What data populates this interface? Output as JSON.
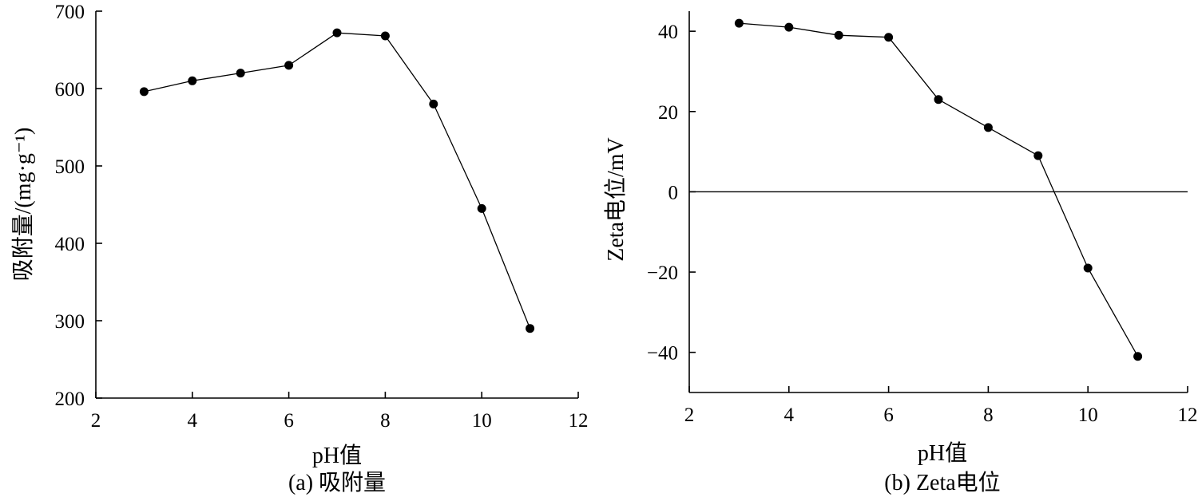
{
  "chart_data": [
    {
      "type": "line",
      "caption": "(a) 吸附量",
      "xlabel": "pH值",
      "ylabel": "吸附量/(mg·g⁻¹)",
      "xlim": [
        2,
        12
      ],
      "ylim": [
        200,
        700
      ],
      "xticks": [
        2,
        4,
        6,
        8,
        10,
        12
      ],
      "yticks": [
        200,
        300,
        400,
        500,
        600,
        700
      ],
      "grid": false,
      "series": [
        {
          "x": [
            3,
            4,
            5,
            6,
            7,
            8,
            9,
            10,
            11
          ],
          "values": [
            596,
            610,
            620,
            630,
            672,
            668,
            580,
            445,
            290
          ]
        }
      ]
    },
    {
      "type": "line",
      "caption": "(b) Zeta电位",
      "xlabel": "pH值",
      "ylabel": "Zeta电位/mV",
      "xlim": [
        2,
        12
      ],
      "ylim": [
        -50,
        45
      ],
      "xticks": [
        2,
        4,
        6,
        8,
        10,
        12
      ],
      "yticks": [
        -40,
        -20,
        0,
        20,
        40
      ],
      "ytick_labels": [
        "−40",
        "−20",
        "0",
        "20",
        "40"
      ],
      "reference_line_y": 0,
      "grid": false,
      "series": [
        {
          "x": [
            3,
            4,
            5,
            6,
            7,
            8,
            9,
            10,
            11
          ],
          "values": [
            42,
            41,
            39,
            38.5,
            23,
            16,
            9,
            -19,
            -41
          ]
        }
      ]
    }
  ]
}
